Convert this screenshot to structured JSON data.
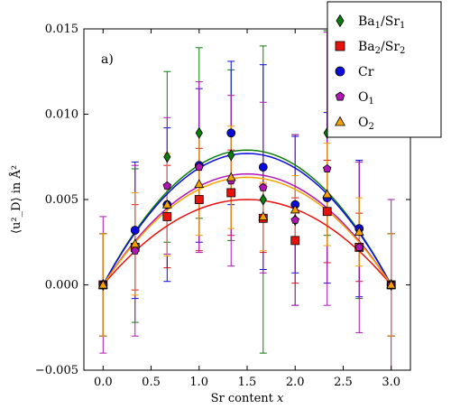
{
  "chart_data": {
    "type": "scatter",
    "panel_label": "a)",
    "xlabel_text": "Sr content ",
    "xlabel_var": "x",
    "ylabel": "⟨u²_D⟩ in Å²",
    "xlim": [
      -0.2,
      3.2
    ],
    "ylim": [
      -0.005,
      0.015
    ],
    "xticks": [
      0.0,
      0.5,
      1.0,
      1.5,
      2.0,
      2.5,
      3.0
    ],
    "xtick_labels": [
      "0.0",
      "0.5",
      "1.0",
      "1.5",
      "2.0",
      "2.5",
      "3.0"
    ],
    "yticks": [
      -0.005,
      0.0,
      0.005,
      0.01,
      0.015
    ],
    "ytick_labels": [
      "−0.005",
      "0.000",
      "0.005",
      "0.010",
      "0.015"
    ],
    "x": [
      0.0,
      0.333,
      0.667,
      1.0,
      1.333,
      1.667,
      2.0,
      2.333,
      2.667,
      3.0
    ],
    "legend_position": "top-right",
    "series": [
      {
        "name_main": "Ba",
        "name_sub": "1",
        "name_mid": "/Sr",
        "name_sub2": "1",
        "marker": "diamond",
        "color": "#0a7d0a",
        "fit_color": "#0a7d0a",
        "values": [
          0.0,
          0.0023,
          0.0075,
          0.0089,
          0.0076,
          0.005,
          0.0038,
          0.0089,
          0.0032,
          0.0
        ],
        "errors": [
          0.003,
          0.0045,
          0.005,
          0.005,
          0.005,
          0.009,
          0.005,
          0.006,
          0.004,
          0.003
        ],
        "fit_peak": 0.0079
      },
      {
        "name_main": "Ba",
        "name_sub": "2",
        "name_mid": "/Sr",
        "name_sub2": "2",
        "marker": "square",
        "color": "#e8120c",
        "fit_color": "#e8120c",
        "values": [
          0.0,
          0.0022,
          0.004,
          0.005,
          0.0054,
          0.0039,
          0.0026,
          0.0043,
          0.0022,
          0.0
        ],
        "errors": [
          0.003,
          0.0025,
          0.003,
          0.003,
          0.0025,
          0.002,
          0.0025,
          0.003,
          0.002,
          0.003
        ],
        "fit_peak": 0.005
      },
      {
        "name_main": "Cr",
        "name_sub": "",
        "name_mid": "",
        "name_sub2": "",
        "marker": "circle",
        "color": "#0b0bdc",
        "fit_color": "#0b0bdc",
        "values": [
          0.0,
          0.0032,
          0.0047,
          0.007,
          0.0089,
          0.0069,
          0.0047,
          0.0051,
          0.0033,
          0.0
        ],
        "errors": [
          0.003,
          0.004,
          0.0045,
          0.0045,
          0.0042,
          0.006,
          0.004,
          0.005,
          0.004,
          0.003
        ],
        "fit_peak": 0.0077
      },
      {
        "name_main": "O",
        "name_sub": "1",
        "name_mid": "",
        "name_sub2": "",
        "marker": "pentagon",
        "color": "#b116b5",
        "fit_color": "#b116b5",
        "values": [
          0.0,
          0.002,
          0.0058,
          0.0069,
          0.0061,
          0.0057,
          0.0038,
          0.0068,
          0.0022,
          0.0
        ],
        "errors": [
          0.004,
          0.005,
          0.004,
          0.005,
          0.005,
          0.005,
          0.005,
          0.008,
          0.005,
          0.005
        ],
        "fit_peak": 0.0065
      },
      {
        "name_main": "O",
        "name_sub": "2",
        "name_mid": "",
        "name_sub2": "",
        "marker": "triangle",
        "color": "#f4a300",
        "fit_color": "#f4a300",
        "values": [
          0.0,
          0.0024,
          0.0047,
          0.0059,
          0.0063,
          0.004,
          0.0044,
          0.0053,
          0.0031,
          0.0
        ],
        "errors": [
          0.003,
          0.003,
          0.003,
          0.003,
          0.003,
          0.002,
          0.002,
          0.003,
          0.002,
          0.003
        ],
        "fit_peak": 0.0063
      }
    ]
  }
}
